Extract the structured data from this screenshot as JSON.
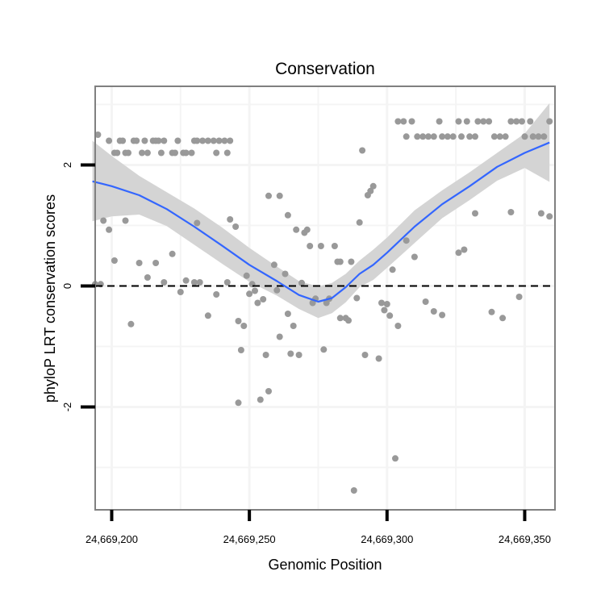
{
  "chart_data": {
    "type": "scatter",
    "title": "Conservation",
    "xlabel": "Genomic Position",
    "ylabel": "phyloP LRT conservation scores",
    "xlim": [
      24669194,
      24669361
    ],
    "ylim": [
      -3.7,
      3.3
    ],
    "x_ticks": [
      {
        "value": 24669200,
        "label": "24,669,200"
      },
      {
        "value": 24669250,
        "label": "24,669,250"
      },
      {
        "value": 24669300,
        "label": "24,669,300"
      },
      {
        "value": 24669350,
        "label": "24,669,350"
      }
    ],
    "y_ticks": [
      {
        "value": -2,
        "label": "-2"
      },
      {
        "value": 0,
        "label": "0"
      },
      {
        "value": 2,
        "label": "2"
      }
    ],
    "reference_line": {
      "y": 0,
      "style": "dashed"
    },
    "points": [
      [
        24669195,
        2.5
      ],
      [
        24669199,
        2.4
      ],
      [
        24669201,
        2.2
      ],
      [
        24669202,
        2.2
      ],
      [
        24669203,
        2.4
      ],
      [
        24669204,
        2.4
      ],
      [
        24669205,
        2.2
      ],
      [
        24669206,
        2.2
      ],
      [
        24669208,
        2.4
      ],
      [
        24669209,
        2.4
      ],
      [
        24669211,
        2.2
      ],
      [
        24669212,
        2.4
      ],
      [
        24669213,
        2.2
      ],
      [
        24669215,
        2.4
      ],
      [
        24669216,
        2.4
      ],
      [
        24669217,
        2.4
      ],
      [
        24669218,
        2.2
      ],
      [
        24669219,
        2.4
      ],
      [
        24669222,
        2.2
      ],
      [
        24669223,
        2.2
      ],
      [
        24669224,
        2.4
      ],
      [
        24669226,
        2.2
      ],
      [
        24669227,
        2.2
      ],
      [
        24669229,
        2.2
      ],
      [
        24669230,
        2.4
      ],
      [
        24669231,
        2.4
      ],
      [
        24669233,
        2.4
      ],
      [
        24669235,
        2.4
      ],
      [
        24669237,
        2.4
      ],
      [
        24669238,
        2.2
      ],
      [
        24669239,
        2.4
      ],
      [
        24669241,
        2.4
      ],
      [
        24669242,
        2.2
      ],
      [
        24669243,
        2.4
      ],
      [
        24669194,
        0.03
      ],
      [
        24669196,
        0.03
      ],
      [
        24669197,
        1.08
      ],
      [
        24669199,
        0.93
      ],
      [
        24669201,
        0.42
      ],
      [
        24669205,
        1.08
      ],
      [
        24669207,
        -0.63
      ],
      [
        24669210,
        0.38
      ],
      [
        24669213,
        0.14
      ],
      [
        24669216,
        0.38
      ],
      [
        24669219,
        0.06
      ],
      [
        24669222,
        0.53
      ],
      [
        24669225,
        -0.1
      ],
      [
        24669227,
        0.09
      ],
      [
        24669230,
        0.06
      ],
      [
        24669231,
        1.04
      ],
      [
        24669232,
        0.06
      ],
      [
        24669235,
        -0.49
      ],
      [
        24669238,
        -0.14
      ],
      [
        24669242,
        0.06
      ],
      [
        24669243,
        1.1
      ],
      [
        24669245,
        0.98
      ],
      [
        24669246,
        -0.58
      ],
      [
        24669246,
        -1.93
      ],
      [
        24669247,
        -1.06
      ],
      [
        24669248,
        -0.66
      ],
      [
        24669249,
        0.17
      ],
      [
        24669250,
        -0.13
      ],
      [
        24669251,
        0.03
      ],
      [
        24669252,
        -0.08
      ],
      [
        24669253,
        -0.28
      ],
      [
        24669254,
        -1.88
      ],
      [
        24669255,
        -0.22
      ],
      [
        24669256,
        -1.14
      ],
      [
        24669257,
        -1.74
      ],
      [
        24669257,
        1.49
      ],
      [
        24669259,
        0.35
      ],
      [
        24669260,
        -0.07
      ],
      [
        24669261,
        -0.84
      ],
      [
        24669261,
        1.49
      ],
      [
        24669263,
        0.2
      ],
      [
        24669264,
        1.17
      ],
      [
        24669264,
        -0.46
      ],
      [
        24669265,
        -1.12
      ],
      [
        24669266,
        -0.66
      ],
      [
        24669267,
        0.93
      ],
      [
        24669268,
        -1.14
      ],
      [
        24669269,
        0.05
      ],
      [
        24669270,
        0.88
      ],
      [
        24669271,
        0.93
      ],
      [
        24669272,
        0.66
      ],
      [
        24669273,
        -0.28
      ],
      [
        24669274,
        -0.21
      ],
      [
        24669276,
        0.66
      ],
      [
        24669277,
        -1.05
      ],
      [
        24669278,
        -0.28
      ],
      [
        24669279,
        -0.21
      ],
      [
        24669281,
        0.66
      ],
      [
        24669282,
        0.4
      ],
      [
        24669283,
        0.4
      ],
      [
        24669283,
        -0.53
      ],
      [
        24669285,
        -0.53
      ],
      [
        24669286,
        -0.57
      ],
      [
        24669287,
        0.4
      ],
      [
        24669288,
        -3.38
      ],
      [
        24669289,
        -0.2
      ],
      [
        24669290,
        1.05
      ],
      [
        24669291,
        2.24
      ],
      [
        24669292,
        -1.14
      ],
      [
        24669293,
        1.5
      ],
      [
        24669294,
        1.57
      ],
      [
        24669295,
        1.65
      ],
      [
        24669297,
        -1.2
      ],
      [
        24669298,
        -0.28
      ],
      [
        24669299,
        -0.4
      ],
      [
        24669300,
        -0.3
      ],
      [
        24669301,
        -0.49
      ],
      [
        24669302,
        0.27
      ],
      [
        24669303,
        -2.85
      ],
      [
        24669304,
        -0.66
      ],
      [
        24669307,
        0.75
      ],
      [
        24669310,
        0.48
      ],
      [
        24669314,
        -0.26
      ],
      [
        24669317,
        -0.42
      ],
      [
        24669320,
        -0.48
      ],
      [
        24669326,
        0.55
      ],
      [
        24669328,
        0.6
      ],
      [
        24669332,
        1.2
      ],
      [
        24669338,
        -0.43
      ],
      [
        24669342,
        -0.53
      ],
      [
        24669345,
        1.22
      ],
      [
        24669348,
        -0.18
      ],
      [
        24669356,
        1.2
      ],
      [
        24669359,
        1.15
      ],
      [
        24669304,
        2.72
      ],
      [
        24669306,
        2.72
      ],
      [
        24669307,
        2.47
      ],
      [
        24669309,
        2.72
      ],
      [
        24669311,
        2.47
      ],
      [
        24669313,
        2.47
      ],
      [
        24669315,
        2.47
      ],
      [
        24669317,
        2.47
      ],
      [
        24669319,
        2.72
      ],
      [
        24669320,
        2.47
      ],
      [
        24669322,
        2.47
      ],
      [
        24669324,
        2.47
      ],
      [
        24669326,
        2.72
      ],
      [
        24669327,
        2.47
      ],
      [
        24669329,
        2.72
      ],
      [
        24669330,
        2.47
      ],
      [
        24669332,
        2.47
      ],
      [
        24669333,
        2.72
      ],
      [
        24669335,
        2.72
      ],
      [
        24669337,
        2.72
      ],
      [
        24669339,
        2.47
      ],
      [
        24669341,
        2.47
      ],
      [
        24669343,
        2.47
      ],
      [
        24669345,
        2.72
      ],
      [
        24669347,
        2.72
      ],
      [
        24669349,
        2.72
      ],
      [
        24669350,
        2.47
      ],
      [
        24669352,
        2.72
      ],
      [
        24669353,
        2.47
      ],
      [
        24669355,
        2.47
      ],
      [
        24669357,
        2.47
      ],
      [
        24669359,
        2.72
      ]
    ],
    "smooth_line": {
      "x": [
        24669193,
        24669200,
        24669210,
        24669220,
        24669230,
        24669240,
        24669250,
        24669260,
        24669268,
        24669275,
        24669280,
        24669285,
        24669290,
        24669295,
        24669300,
        24669310,
        24669320,
        24669330,
        24669340,
        24669350,
        24669359
      ],
      "y": [
        1.73,
        1.65,
        1.5,
        1.27,
        0.98,
        0.67,
        0.35,
        0.08,
        -0.15,
        -0.26,
        -0.2,
        -0.02,
        0.2,
        0.35,
        0.55,
        0.98,
        1.35,
        1.65,
        1.97,
        2.2,
        2.37
      ],
      "ci_upper": [
        2.4,
        2.15,
        1.82,
        1.55,
        1.28,
        0.97,
        0.63,
        0.32,
        0.08,
        -0.01,
        0.05,
        0.2,
        0.42,
        0.6,
        0.8,
        1.25,
        1.58,
        1.88,
        2.2,
        2.52,
        3.02
      ],
      "ci_lower": [
        1.07,
        1.15,
        1.18,
        0.99,
        0.68,
        0.37,
        0.07,
        -0.16,
        -0.38,
        -0.53,
        -0.45,
        -0.27,
        -0.02,
        0.1,
        0.3,
        0.71,
        1.12,
        1.42,
        1.74,
        1.95,
        1.72
      ]
    },
    "colors": {
      "points": "#999999",
      "line": "#3366ff",
      "ribbon": "#d4d4d4",
      "grid": "#f4f4f4",
      "border": "#808080"
    }
  }
}
